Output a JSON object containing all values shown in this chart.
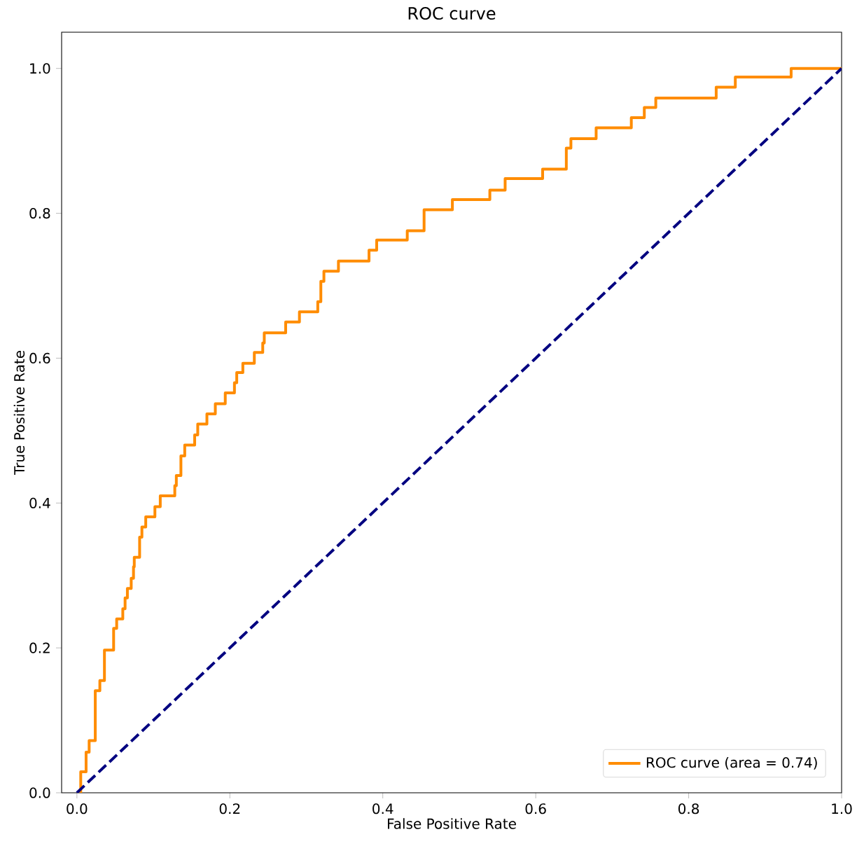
{
  "chart_data": {
    "type": "line",
    "title": "ROC curve",
    "xlabel": "False Positive Rate",
    "ylabel": "True Positive Rate",
    "xlim": [
      -0.02,
      1.0
    ],
    "ylim": [
      0.0,
      1.05
    ],
    "xticks": [
      {
        "value": 0,
        "label": "0.0"
      },
      {
        "value": 0.2,
        "label": "0.2"
      },
      {
        "value": 0.4,
        "label": "0.4"
      },
      {
        "value": 0.6,
        "label": "0.6"
      },
      {
        "value": 0.8,
        "label": "0.8"
      },
      {
        "value": 1.0,
        "label": "1.0"
      }
    ],
    "yticks": [
      {
        "value": 0,
        "label": "0.0"
      },
      {
        "value": 0.2,
        "label": "0.2"
      },
      {
        "value": 0.4,
        "label": "0.4"
      },
      {
        "value": 0.6,
        "label": "0.6"
      },
      {
        "value": 0.8,
        "label": "0.8"
      },
      {
        "value": 1.0,
        "label": "1.0"
      }
    ],
    "legend": "bottom right",
    "grid": false,
    "marker": "none",
    "series": [
      {
        "name": "ROC curve (area = 0.74)",
        "color": "#ff8c00",
        "line_style": "solid",
        "x": [
          0,
          0.005,
          0.005,
          0.012,
          0.012,
          0.016,
          0.016,
          0.024,
          0.024,
          0.03,
          0.03,
          0.036,
          0.036,
          0.048,
          0.048,
          0.052,
          0.052,
          0.06,
          0.06,
          0.063,
          0.063,
          0.066,
          0.066,
          0.071,
          0.071,
          0.074,
          0.074,
          0.075,
          0.075,
          0.082,
          0.082,
          0.085,
          0.085,
          0.09,
          0.09,
          0.102,
          0.102,
          0.109,
          0.109,
          0.128,
          0.128,
          0.13,
          0.13,
          0.136,
          0.136,
          0.141,
          0.141,
          0.154,
          0.154,
          0.158,
          0.158,
          0.17,
          0.17,
          0.181,
          0.181,
          0.194,
          0.194,
          0.206,
          0.206,
          0.209,
          0.209,
          0.217,
          0.217,
          0.232,
          0.232,
          0.243,
          0.243,
          0.245,
          0.245,
          0.273,
          0.273,
          0.291,
          0.291,
          0.315,
          0.315,
          0.319,
          0.319,
          0.323,
          0.323,
          0.342,
          0.342,
          0.382,
          0.382,
          0.392,
          0.392,
          0.432,
          0.432,
          0.454,
          0.454,
          0.491,
          0.491,
          0.54,
          0.54,
          0.56,
          0.56,
          0.609,
          0.609,
          0.64,
          0.64,
          0.646,
          0.646,
          0.679,
          0.679,
          0.725,
          0.725,
          0.742,
          0.742,
          0.757,
          0.757,
          0.836,
          0.836,
          0.861,
          0.861,
          0.934,
          0.934,
          1.0
        ],
        "values": [
          0,
          0,
          0.029,
          0.029,
          0.056,
          0.056,
          0.072,
          0.072,
          0.141,
          0.141,
          0.155,
          0.155,
          0.197,
          0.197,
          0.227,
          0.227,
          0.24,
          0.24,
          0.254,
          0.254,
          0.269,
          0.269,
          0.282,
          0.282,
          0.296,
          0.296,
          0.312,
          0.312,
          0.325,
          0.325,
          0.353,
          0.353,
          0.367,
          0.367,
          0.381,
          0.381,
          0.395,
          0.395,
          0.41,
          0.41,
          0.424,
          0.424,
          0.438,
          0.438,
          0.465,
          0.465,
          0.48,
          0.48,
          0.494,
          0.494,
          0.509,
          0.509,
          0.523,
          0.523,
          0.537,
          0.537,
          0.552,
          0.552,
          0.566,
          0.566,
          0.58,
          0.58,
          0.593,
          0.593,
          0.608,
          0.608,
          0.621,
          0.621,
          0.635,
          0.635,
          0.65,
          0.65,
          0.664,
          0.664,
          0.678,
          0.678,
          0.706,
          0.706,
          0.72,
          0.72,
          0.734,
          0.734,
          0.749,
          0.749,
          0.763,
          0.763,
          0.776,
          0.776,
          0.805,
          0.805,
          0.819,
          0.819,
          0.832,
          0.832,
          0.848,
          0.848,
          0.861,
          0.861,
          0.89,
          0.89,
          0.903,
          0.903,
          0.918,
          0.918,
          0.932,
          0.932,
          0.946,
          0.946,
          0.959,
          0.959,
          0.974,
          0.974,
          0.988,
          0.988,
          1.0,
          1.0
        ]
      },
      {
        "color": "#000080",
        "line_style": "dashed",
        "x": [
          0,
          1
        ],
        "values": [
          0,
          1
        ]
      }
    ]
  }
}
